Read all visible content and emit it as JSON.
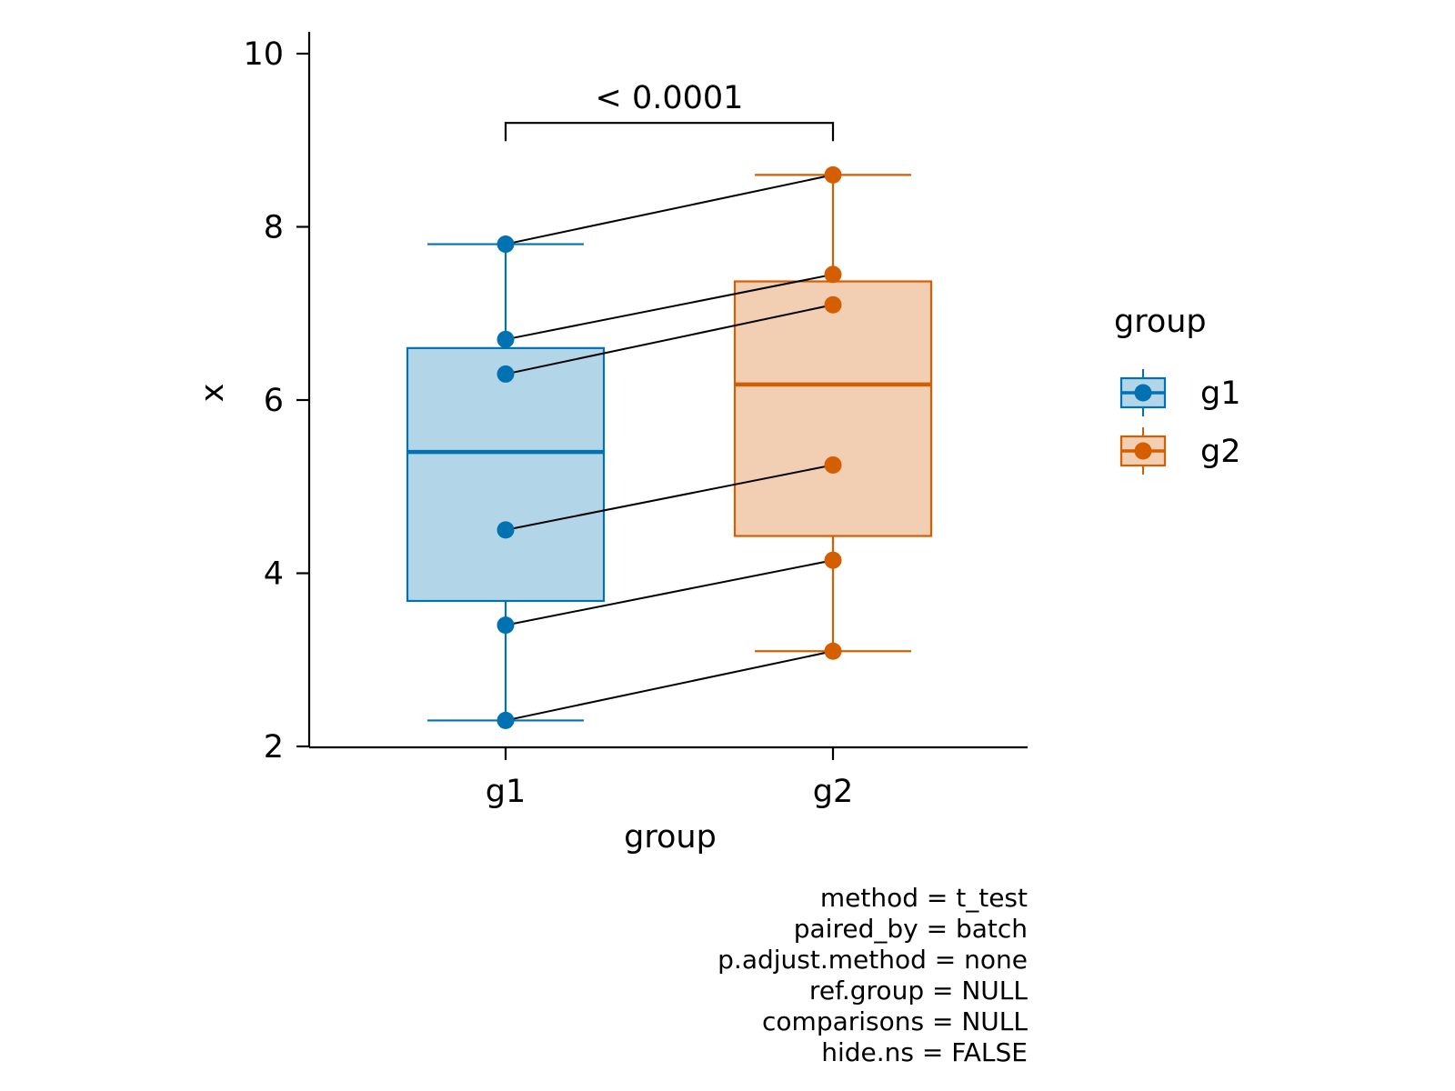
{
  "chart_data": {
    "type": "box",
    "xlabel": "group",
    "ylabel": "x",
    "categories": [
      "g1",
      "g2"
    ],
    "ylim": [
      2,
      10
    ],
    "yticks": [
      2,
      4,
      6,
      8,
      10
    ],
    "grid": false,
    "legend": {
      "title": "group",
      "position": "right",
      "entries": [
        {
          "label": "g1",
          "color": "#0072B2"
        },
        {
          "label": "g2",
          "color": "#D55E00"
        }
      ]
    },
    "series": [
      {
        "category": "g1",
        "color": "#0072B2",
        "fill": "#B3D5E8",
        "box": {
          "min": 2.3,
          "q1": 3.68,
          "median": 5.4,
          "q3": 6.6,
          "max": 7.8
        },
        "points": [
          7.8,
          6.7,
          6.3,
          4.5,
          3.4,
          2.3
        ]
      },
      {
        "category": "g2",
        "color": "#D55E00",
        "fill": "#F2CEB2",
        "box": {
          "min": 3.1,
          "q1": 4.43,
          "median": 6.18,
          "q3": 7.37,
          "max": 8.6
        },
        "points": [
          8.6,
          7.45,
          7.1,
          5.25,
          4.15,
          3.1
        ]
      }
    ],
    "pairs": [
      [
        7.8,
        8.6
      ],
      [
        6.7,
        7.45
      ],
      [
        6.3,
        7.1
      ],
      [
        4.5,
        5.25
      ],
      [
        3.4,
        4.15
      ],
      [
        2.3,
        3.1
      ]
    ],
    "comparison": {
      "groups": [
        "g1",
        "g2"
      ],
      "label": "< 0.0001",
      "y": 9.2
    },
    "caption": [
      "method = t_test",
      "paired_by = batch",
      "p.adjust.method = none",
      "ref.group = NULL",
      "comparisons = NULL",
      "hide.ns = FALSE"
    ]
  }
}
